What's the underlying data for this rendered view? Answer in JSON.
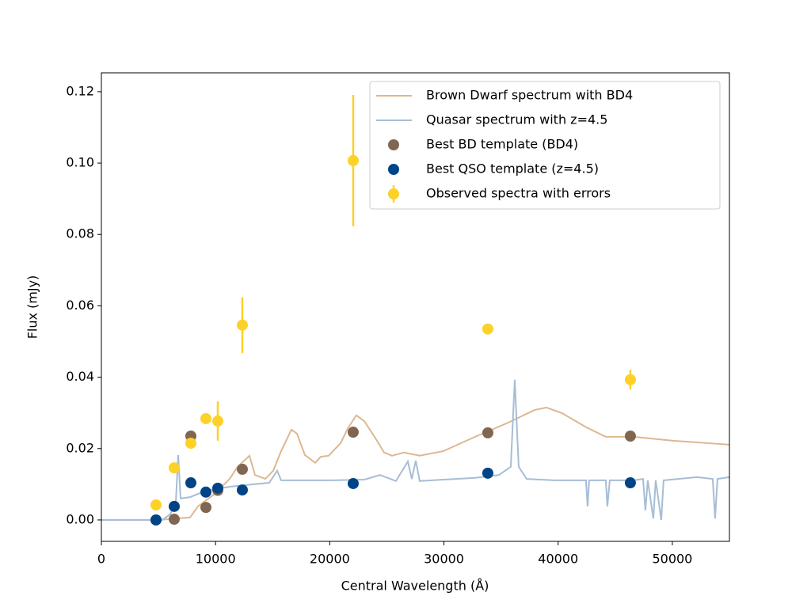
{
  "chart_data": {
    "type": "scatter",
    "xlabel": "Central Wavelength (Å)",
    "ylabel": "Flux (mJy)",
    "xlim": [
      0,
      55000
    ],
    "ylim": [
      -0.006,
      0.1253
    ],
    "xticks": [
      0,
      10000,
      20000,
      30000,
      40000,
      50000
    ],
    "yticks": [
      {
        "value": 0,
        "label": "0.00"
      },
      0.02,
      0.04,
      0.06,
      0.08,
      {
        "value": 0.1,
        "label": "0.10"
      },
      0.12
    ],
    "legend": "upper right",
    "series": [
      {
        "name": "Brown Dwarf spectrum with BD4",
        "type": "line",
        "color": "#dcb892",
        "x": [
          0,
          4993,
          7767,
          8460,
          9847,
          11234,
          11928,
          12968,
          13454,
          14355,
          15049,
          15742,
          16644,
          17129,
          17822,
          18724,
          19209,
          19903,
          20943,
          21637,
          22330,
          23024,
          24064,
          24757,
          25451,
          26491,
          27878,
          29958,
          32732,
          35506,
          37933,
          38974,
          40361,
          42441,
          44175,
          46602,
          50069,
          54993
        ],
        "values": [
          0,
          0,
          0.0007,
          0.0038,
          0.0071,
          0.0115,
          0.0149,
          0.018,
          0.0126,
          0.0115,
          0.0138,
          0.0193,
          0.0253,
          0.0242,
          0.0182,
          0.016,
          0.0177,
          0.018,
          0.0215,
          0.026,
          0.0293,
          0.0277,
          0.0226,
          0.0189,
          0.018,
          0.0189,
          0.018,
          0.0193,
          0.0233,
          0.0271,
          0.0308,
          0.0315,
          0.0299,
          0.026,
          0.0233,
          0.0233,
          0.0222,
          0.0211
        ]
      },
      {
        "name": "Quasar spectrum with z=4.5",
        "type": "line",
        "color": "#a7bdd5",
        "x": [
          0,
          5340,
          6033,
          6519,
          6727,
          6935,
          7767,
          9154,
          11234,
          13315,
          14702,
          15395,
          15742,
          17476,
          20250,
          23024,
          24411,
          25798,
          26838,
          27185,
          27531,
          27878,
          29958,
          32732,
          34813,
          35853,
          36200,
          36547,
          37240,
          39667,
          42441,
          42580,
          42718,
          44175,
          44313,
          44521,
          46602,
          47434,
          47642,
          47850,
          48336,
          48544,
          49029,
          49237,
          52150,
          53537,
          53745,
          53953,
          54993
        ],
        "values": [
          0,
          0,
          0.0016,
          0.0049,
          0.0182,
          0.006,
          0.0064,
          0.0082,
          0.0093,
          0.01,
          0.0104,
          0.0138,
          0.0111,
          0.0111,
          0.0111,
          0.0113,
          0.0126,
          0.0109,
          0.0164,
          0.0115,
          0.0166,
          0.0109,
          0.0113,
          0.0118,
          0.0126,
          0.0149,
          0.0393,
          0.0149,
          0.0115,
          0.0111,
          0.0111,
          0.0038,
          0.0111,
          0.0111,
          0.0038,
          0.0111,
          0.0111,
          0.0115,
          0.0027,
          0.0111,
          0.0004,
          0.0111,
          0,
          0.0111,
          0.012,
          0.0115,
          0.0004,
          0.0115,
          0.012
        ]
      },
      {
        "name": "Best BD template (BD4)",
        "type": "scatter",
        "color": "#806651",
        "x": [
          4785,
          6380,
          7836,
          9154,
          10194,
          12344,
          22053,
          33842,
          46325
        ],
        "values": [
          0,
          0.0002,
          0.0235,
          0.0035,
          0.0083,
          0.0142,
          0.0246,
          0.0244,
          0.0235
        ]
      },
      {
        "name": "Best QSO template (z=4.5)",
        "type": "scatter",
        "color": "#004488",
        "x": [
          4785,
          6380,
          7836,
          9154,
          10194,
          12344,
          22053,
          33842,
          46325
        ],
        "values": [
          0,
          0.0038,
          0.0104,
          0.0078,
          0.0089,
          0.0084,
          0.0102,
          0.0131,
          0.0104
        ]
      },
      {
        "name": "Observed spectra with errors",
        "type": "errorbar",
        "color": "#fdd128",
        "x": [
          4785,
          6380,
          7836,
          9154,
          10194,
          12344,
          22053,
          33842,
          46325
        ],
        "values": [
          0.0042,
          0.0146,
          0.0215,
          0.0284,
          0.0277,
          0.0546,
          0.1007,
          0.0535,
          0.0393
        ],
        "errors": [
          0.0004,
          0.0005,
          0.0006,
          0.0006,
          0.0055,
          0.0078,
          0.0184,
          0.0013,
          0.0027
        ]
      }
    ]
  }
}
